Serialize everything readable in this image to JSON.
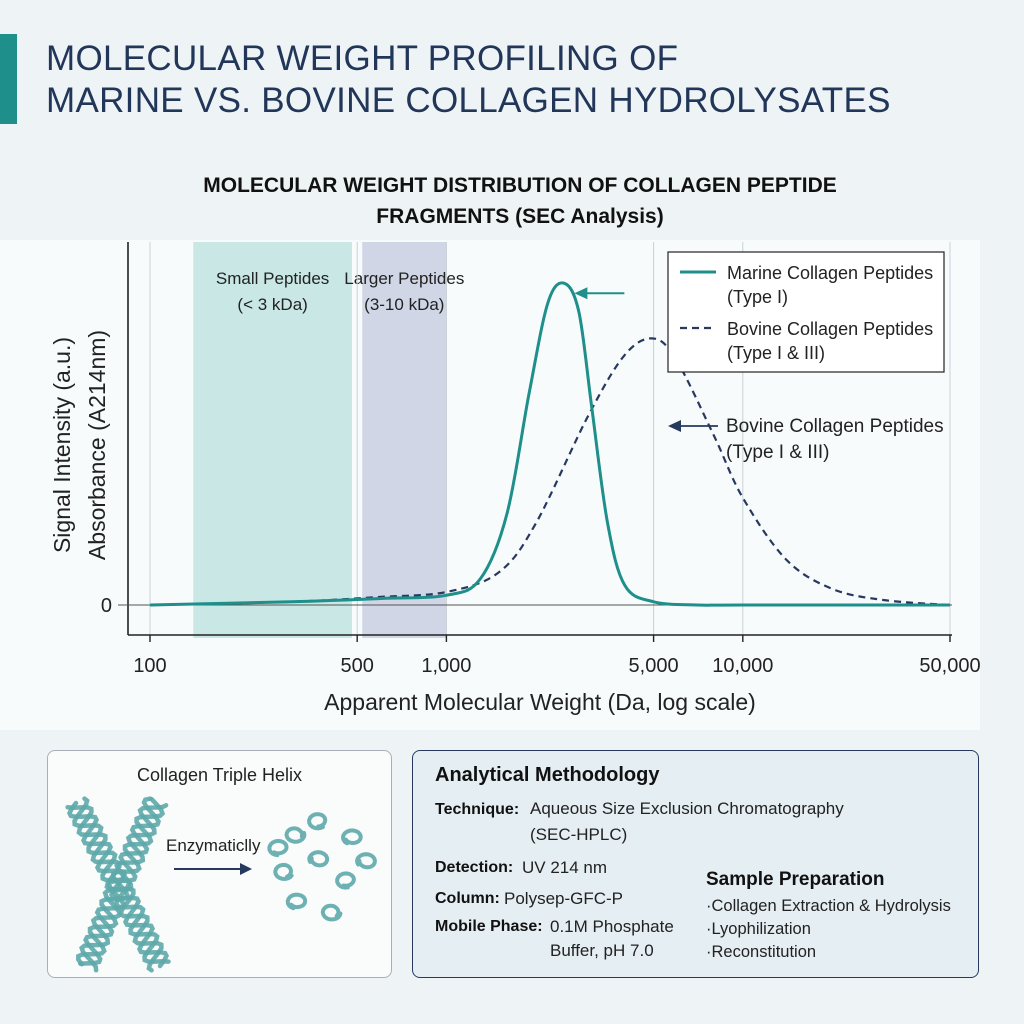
{
  "header": {
    "title_line1": "MOLECULAR WEIGHT PROFILING OF",
    "title_line2": "MARINE VS. BOVINE COLLAGEN HYDROLYSATES",
    "accent_color": "#1e8f8a"
  },
  "chart_data": {
    "type": "line",
    "title_line1": "MOLECULAR WEIGHT DISTRIBUTION OF COLLAGEN PEPTIDE",
    "title_line2": "FRAGMENTS (SEC Analysis)",
    "xlabel": "Apparent Molecular Weight (Da, log scale)",
    "ylabel_line1": "Signal Intensity (a.u.)",
    "ylabel_line2": "Absorbance (A214nm)",
    "x_scale": "log",
    "xlim": [
      100,
      50000
    ],
    "ylim": [
      0,
      1.0
    ],
    "x_ticks": [
      100,
      500,
      1000,
      5000,
      10000,
      50000
    ],
    "x_tick_labels": [
      "100",
      "500",
      "1,000",
      "5,000",
      "10,000",
      "50,000"
    ],
    "y_ticks": [
      0
    ],
    "y_tick_labels": [
      "0"
    ],
    "grid": "vertical",
    "regions": [
      {
        "label_line1": "Small Peptides",
        "label_line2": "(< 3 kDa)",
        "x_start": 140,
        "x_end": 480,
        "color": "#bfe3e0"
      },
      {
        "label_line1": "Larger Peptides",
        "label_line2": "(3-10 kDa)",
        "x_start": 520,
        "x_end": 1000,
        "color": "#c9cfe0"
      }
    ],
    "series": [
      {
        "name_line1": "Marine Collagen Peptides",
        "name_line2": "(Type I)",
        "color": "#1e8f8a",
        "style": "solid",
        "x": [
          100,
          300,
          600,
          1000,
          1300,
          1600,
          1900,
          2200,
          2500,
          2800,
          3100,
          3500,
          4000,
          5000,
          7000,
          10000,
          50000
        ],
        "y": [
          0.0,
          0.01,
          0.02,
          0.03,
          0.08,
          0.28,
          0.65,
          0.93,
          0.99,
          0.9,
          0.6,
          0.25,
          0.06,
          0.01,
          0.0,
          0.0,
          0.0
        ]
      },
      {
        "name_line1": "Bovine Collagen Peptides",
        "name_line2": "(Type I & III)",
        "color": "#27395e",
        "style": "dashed",
        "x": [
          100,
          300,
          600,
          1000,
          1500,
          2000,
          3000,
          4000,
          5000,
          6000,
          8000,
          10000,
          14000,
          20000,
          30000,
          50000
        ],
        "y": [
          0.0,
          0.01,
          0.025,
          0.04,
          0.1,
          0.25,
          0.58,
          0.77,
          0.82,
          0.75,
          0.52,
          0.33,
          0.14,
          0.05,
          0.015,
          0.0
        ]
      }
    ],
    "legend": "top-right",
    "annotations": [
      {
        "target": "marine-peak",
        "text_line1": "",
        "text_line2": ""
      },
      {
        "target": "bovine-curve",
        "text_line1": "Bovine Collagen Peptides",
        "text_line2": "(Type I & III)"
      }
    ]
  },
  "helix_panel": {
    "title": "Collagen Triple Helix",
    "arrow_label": "Enzymaticlly",
    "helix_color": "#5ea9aa"
  },
  "methodology": {
    "heading": "Analytical Methodology",
    "technique_label": "Technique:",
    "technique_value_line1": "Aqueous Size Exclusion Chromatography",
    "technique_value_line2": "(SEC-HPLC)",
    "detection_label": "Detection:",
    "detection_value": "UV 214 nm",
    "column_label": "Column:",
    "column_value": "Polysep-GFC-P",
    "mobile_label": "Mobile Phase:",
    "mobile_value_line1": "0.1M Phosphate",
    "mobile_value_line2": "Buffer, pH 7.0",
    "prep_heading": "Sample Preparation",
    "prep_items": [
      "·Collagen Extraction & Hydrolysis",
      "·Lyophilization",
      "·Reconstitution"
    ]
  }
}
